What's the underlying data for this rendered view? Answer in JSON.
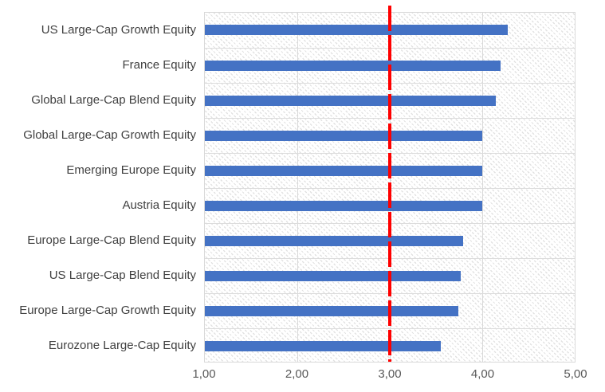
{
  "chart_data": {
    "type": "bar",
    "orientation": "horizontal",
    "title": "",
    "legend_position": "none",
    "categories": [
      "US Large-Cap Growth Equity",
      "France Equity",
      "Global Large-Cap Blend Equity",
      "Global Large-Cap Growth Equity",
      "Emerging Europe Equity",
      "Austria Equity",
      "Europe Large-Cap Blend Equity",
      "US Large-Cap Blend Equity",
      "Europe Large-Cap Growth Equity",
      "Eurozone Large-Cap Equity"
    ],
    "values": [
      4.28,
      4.2,
      4.15,
      4.0,
      4.0,
      4.0,
      3.79,
      3.77,
      3.74,
      3.55
    ],
    "xlim": [
      1.0,
      5.0
    ],
    "x_tick_values": [
      1,
      2,
      3,
      4,
      5
    ],
    "x_tick_labels": [
      "1,00",
      "2,00",
      "3,00",
      "4,00",
      "5,00"
    ],
    "reference_line": {
      "value": 3.0,
      "style": "dashed",
      "color": "#FF0000"
    },
    "grid": true,
    "plot_area_fill": "light-downward-diagonal-hatch",
    "colors": {
      "bar": "#4472C4",
      "reference": "#FF0000",
      "gridline": "#D9D9D9",
      "category_label": "#404040",
      "tick_label": "#595959",
      "background": "#FFFFFF",
      "hatch": "#E2E2E2"
    }
  }
}
